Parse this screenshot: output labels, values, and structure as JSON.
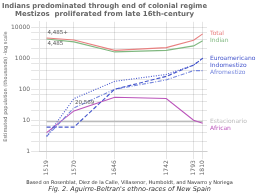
{
  "chart_data": {
    "type": "line",
    "title": "Indians predominated through end of colonial regime",
    "subtitle": "Mestizos  proliferated from late 16th-century",
    "ylabel": "Estimated population (thousands) -log scale",
    "x": [
      1519,
      1570,
      1646,
      1742,
      1793,
      1810
    ],
    "series": [
      {
        "name": "Total",
        "color": "#e88080",
        "line_style": "solid",
        "values": [
          4485,
          3880,
          1800,
          2200,
          3800,
          6100
        ]
      },
      {
        "name": "Indian",
        "color": "#80b880",
        "line_style": "solid",
        "values": [
          4180,
          3380,
          1600,
          1800,
          2500,
          3676
        ]
      },
      {
        "name": "Euroamericano",
        "color": "#4455cc",
        "line_style": "dashed",
        "values": [
          6,
          6,
          100,
          260,
          600,
          1000
        ]
      },
      {
        "name": "Indomestizo",
        "color": "#4455cc",
        "line_style": "dotted",
        "values": [
          3,
          50,
          180,
          300,
          600,
          1000
        ]
      },
      {
        "name": "Afromestizo",
        "color": "#7788dd",
        "line_style": "dashdot",
        "values": [
          3,
          25,
          100,
          200,
          400,
          400
        ]
      },
      {
        "name": "African",
        "color": "#bb55bb",
        "line_style": "solid",
        "values": [
          4,
          20,
          55,
          50,
          10,
          8
        ]
      },
      {
        "name": "Estacionario",
        "color": "#bbbbbb",
        "line_style": "solid",
        "values": [
          9,
          9,
          9,
          9,
          9,
          9
        ]
      }
    ],
    "xlim": [
      1505,
      1818
    ],
    "xticks": [
      1519,
      1570,
      1646,
      1742,
      1793,
      1810
    ],
    "ylim": [
      1,
      15000
    ],
    "yticks": [
      1,
      {
        "value": 2,
        "label": null
      },
      {
        "value": 4,
        "label": null
      },
      {
        "value": 7,
        "label": null
      },
      10,
      {
        "value": 20,
        "label": null
      },
      {
        "value": 40,
        "label": null
      },
      {
        "value": 70,
        "label": null
      },
      100,
      {
        "value": 200,
        "label": null
      },
      {
        "value": 400,
        "label": null
      },
      {
        "value": 700,
        "label": null
      },
      1000,
      {
        "value": 2000,
        "label": null
      },
      {
        "value": 4000,
        "label": null
      },
      {
        "value": 7000,
        "label": null
      },
      10000
    ],
    "log": "y",
    "grid": true,
    "annotations": [
      {
        "text": "4,485+",
        "x": 1519,
        "y": 4485
      },
      {
        "text": "4,485",
        "x": 1519,
        "y": 4180
      },
      {
        "text": "20,569",
        "x": 1570,
        "y": 25
      },
      {
        "text": "Based on Rosenblat, Diez de la Calle, Villasenor, Humboldt, and Navarro y Noriega"
      },
      {
        "text": "Fig. 2. Aguirre-Beltran's ethno-races of New Spain"
      }
    ]
  }
}
